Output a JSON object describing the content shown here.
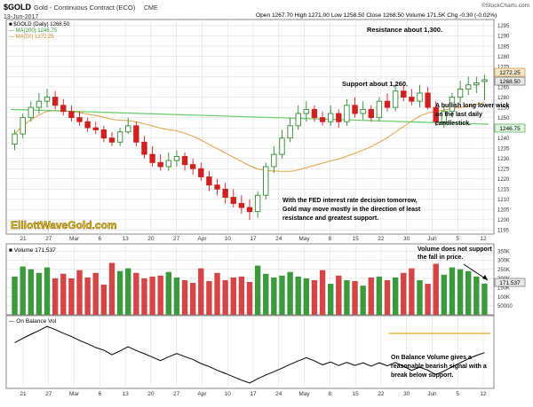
{
  "header": {
    "symbol": "$GOLD",
    "name": "Gold - Continuous Contract (ECO)",
    "exchange": "CME",
    "date": "13-Jun-2017",
    "quote": "Open 1267.70  High 1271.00  Low 1258.50  Close 1268.50  Volume 171.5K  Chg -0.30 (-0.02%)",
    "watermark": "©StockCharts.com"
  },
  "legend": {
    "price": "■ $GOLD (Daily) 1268.50",
    "ma200": "— MA(200) 1246.75",
    "ma20": "— MA(20) 1272.25",
    "volume": "■ Volume 171,537",
    "obv": "— On Balance Vol"
  },
  "last_values": {
    "ma20": "1272.25",
    "close": "1268.50",
    "ma200": "1246.75",
    "volume": "171.537"
  },
  "site_logo": "ElliottWaveGold.com",
  "annotations": {
    "resistance": "Resistance about 1,300.",
    "support": "Support about 1,260.",
    "wick_1": "A bullish long lower wick",
    "wick_2": "on the last daily",
    "wick_3": "candlestick.",
    "fed_1": "With the FED interest rate decision tomorrow,",
    "fed_2": "Gold may move mostly in the direction of least",
    "fed_3": "resistance and greatest support.",
    "vol_1": "Volume does not support",
    "vol_2": "the fall in price.",
    "obv_1": "On Balance Volume gives a",
    "obv_2": "reasonable bearish signal with a",
    "obv_3": "break below support."
  },
  "colors": {
    "up": "#2f8a2f",
    "down": "#d02020",
    "volume_up": "#3b9a3b",
    "volume_down": "#d64545",
    "ma200": "#66cc66",
    "ma20": "#e0a040",
    "obv": "#000000",
    "obv_support": "#e8b020",
    "grid": "#d8d8d8",
    "panel_border": "#8a8a8a",
    "logo": "#e8c020"
  },
  "chart_data": [
    {
      "type": "candlestick",
      "title": "$GOLD Gold - Continuous Contract (ECO) CME",
      "x": [
        "2017-03-21",
        "2017-03-22",
        "2017-03-23",
        "2017-03-24",
        "2017-03-27",
        "2017-03-28",
        "2017-03-29",
        "2017-03-30",
        "2017-03-31",
        "2017-04-03",
        "2017-04-04",
        "2017-04-05",
        "2017-04-06",
        "2017-04-07",
        "2017-04-10",
        "2017-04-11",
        "2017-04-12",
        "2017-04-13",
        "2017-04-17",
        "2017-04-18",
        "2017-04-19",
        "2017-04-20",
        "2017-04-21",
        "2017-04-24",
        "2017-04-25",
        "2017-04-26",
        "2017-04-27",
        "2017-04-28",
        "2017-05-01",
        "2017-05-02",
        "2017-05-03",
        "2017-05-04",
        "2017-05-05",
        "2017-05-08",
        "2017-05-09",
        "2017-05-10",
        "2017-05-11",
        "2017-05-12",
        "2017-05-15",
        "2017-05-16",
        "2017-05-17",
        "2017-05-18",
        "2017-05-19",
        "2017-05-22",
        "2017-05-23",
        "2017-05-24",
        "2017-05-25",
        "2017-05-26",
        "2017-05-30",
        "2017-05-31",
        "2017-06-01",
        "2017-06-02",
        "2017-06-05",
        "2017-06-06",
        "2017-06-07",
        "2017-06-08",
        "2017-06-09",
        "2017-06-12",
        "2017-06-13"
      ],
      "x_tick_labels": [
        "21",
        "27",
        "Mar",
        "6",
        "13",
        "20",
        "27",
        "Apr",
        "10",
        "17",
        "24",
        "May",
        "8",
        "15",
        "22",
        "30",
        "Jun",
        "5",
        "12"
      ],
      "y_tick_labels": [
        "1295",
        "1290",
        "1285",
        "1280",
        "1275",
        "1270",
        "1265",
        "1260",
        "1255",
        "1250",
        "1245",
        "1240",
        "1235",
        "1230",
        "1225",
        "1220",
        "1215",
        "1210",
        "1205",
        "1200",
        "1195"
      ],
      "ylim": [
        1193,
        1298
      ],
      "series": [
        {
          "name": "$GOLD (Daily)",
          "open": [
            1237,
            1242,
            1250,
            1255,
            1258,
            1260,
            1256,
            1253,
            1250,
            1248,
            1245,
            1244,
            1240,
            1238,
            1243,
            1246,
            1238,
            1232,
            1228,
            1226,
            1229,
            1231,
            1227,
            1225,
            1221,
            1217,
            1215,
            1211,
            1208,
            1206,
            1204,
            1212,
            1226,
            1232,
            1240,
            1246,
            1252,
            1254,
            1250,
            1248,
            1252,
            1248,
            1256,
            1252,
            1254,
            1250,
            1258,
            1255,
            1263,
            1260,
            1258,
            1262,
            1255,
            1248,
            1253,
            1260,
            1264,
            1266,
            1267.7
          ],
          "high": [
            1244,
            1252,
            1258,
            1262,
            1264,
            1263,
            1259,
            1256,
            1253,
            1250,
            1248,
            1246,
            1243,
            1245,
            1250,
            1248,
            1241,
            1236,
            1232,
            1233,
            1234,
            1233,
            1230,
            1228,
            1224,
            1220,
            1218,
            1215,
            1212,
            1210,
            1214,
            1228,
            1236,
            1244,
            1250,
            1256,
            1258,
            1256,
            1253,
            1256,
            1254,
            1259,
            1260,
            1258,
            1256,
            1260,
            1262,
            1266,
            1266,
            1264,
            1266,
            1265,
            1258,
            1256,
            1262,
            1268,
            1270,
            1270,
            1271
          ],
          "low": [
            1234,
            1240,
            1248,
            1252,
            1255,
            1254,
            1251,
            1248,
            1246,
            1243,
            1242,
            1238,
            1236,
            1236,
            1242,
            1236,
            1230,
            1226,
            1224,
            1224,
            1226,
            1224,
            1222,
            1219,
            1214,
            1212,
            1208,
            1206,
            1203,
            1200,
            1201,
            1210,
            1223,
            1230,
            1238,
            1244,
            1248,
            1248,
            1246,
            1246,
            1245,
            1246,
            1250,
            1249,
            1248,
            1248,
            1253,
            1253,
            1258,
            1256,
            1255,
            1254,
            1246,
            1245,
            1250,
            1257,
            1261,
            1262,
            1258.5
          ],
          "close": [
            1242,
            1250,
            1255,
            1258,
            1260,
            1256,
            1253,
            1250,
            1248,
            1245,
            1244,
            1240,
            1238,
            1243,
            1246,
            1238,
            1232,
            1228,
            1226,
            1229,
            1231,
            1227,
            1225,
            1221,
            1217,
            1215,
            1211,
            1208,
            1206,
            1204,
            1212,
            1226,
            1232,
            1240,
            1246,
            1252,
            1254,
            1250,
            1248,
            1252,
            1248,
            1256,
            1252,
            1254,
            1250,
            1258,
            1255,
            1263,
            1260,
            1258,
            1262,
            1255,
            1248,
            1253,
            1260,
            1264,
            1266,
            1267,
            1268.5
          ]
        }
      ]
    },
    {
      "type": "bar",
      "title": "Volume 171,537",
      "y_tick_labels": [
        "350K",
        "300K",
        "250K",
        "200K",
        "150K",
        "100K",
        "50000"
      ],
      "series": [
        {
          "name": "Volume",
          "values": [
            210,
            265,
            250,
            230,
            260,
            200,
            225,
            200,
            245,
            205,
            230,
            165,
            285,
            240,
            255,
            230,
            200,
            210,
            215,
            235,
            205,
            190,
            175,
            255,
            185,
            230,
            190,
            205,
            210,
            180,
            270,
            225,
            205,
            215,
            235,
            210,
            200,
            190,
            245,
            170,
            215,
            190,
            185,
            160,
            205,
            210,
            190,
            205,
            230,
            255,
            190,
            170,
            280,
            220,
            260,
            250,
            240,
            210,
            171.5
          ]
        }
      ]
    },
    {
      "type": "line",
      "title": "On Balance Vol",
      "series": [
        {
          "name": "On Balance Vol"
        }
      ]
    }
  ]
}
